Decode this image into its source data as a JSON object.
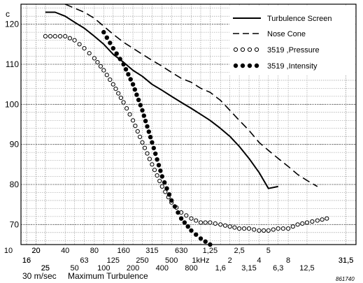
{
  "chart_data": {
    "type": "line",
    "corner_label": "c",
    "y_ticks": [
      70,
      80,
      90,
      100,
      110,
      120
    ],
    "ylim": [
      65,
      125
    ],
    "x_axis_scale": "log",
    "x_ticks_row1": [
      "20",
      "40",
      "80",
      "160",
      "315",
      "630",
      "1,25",
      "2,5",
      "5",
      "10",
      "20"
    ],
    "x_ticks_row2": [
      "16",
      "31,5",
      "63",
      "125",
      "250",
      "500",
      "1kHz",
      "2",
      "4",
      "8",
      "16",
      "31,5"
    ],
    "x_ticks_row3": [
      "25",
      "50",
      "100",
      "200",
      "400",
      "800",
      "1,6",
      "3,15",
      "6,3",
      "12,5",
      "25"
    ],
    "bottom_label_speed": "30 m/sec",
    "bottom_label_title": "Maximum Turbulence",
    "figure_number": "861740",
    "legend_position": "top-right",
    "series": [
      {
        "name": "Turbulence Screen",
        "style": "solid",
        "x": [
          25,
          31.5,
          40,
          50,
          63,
          80,
          100,
          125,
          160,
          200,
          250,
          315,
          400,
          500,
          630,
          800,
          1000,
          1250,
          1600,
          2000,
          2500,
          3150,
          4000,
          5000,
          6300
        ],
        "y": [
          123,
          123,
          122,
          120.5,
          119,
          117,
          115,
          112.5,
          110.5,
          108.5,
          107,
          105,
          103.5,
          102,
          100.5,
          99,
          97.5,
          96,
          94,
          92,
          89.5,
          86.5,
          83,
          79,
          79.5
        ]
      },
      {
        "name": "Nose Cone",
        "style": "dashed",
        "x": [
          40,
          50,
          63,
          80,
          100,
          125,
          160,
          200,
          250,
          315,
          400,
          500,
          630,
          800,
          1000,
          1250,
          1600,
          2000,
          2500,
          3150,
          4000,
          5000,
          6300,
          8000,
          10000,
          12500,
          16000
        ],
        "y": [
          125,
          124,
          123,
          121.5,
          119.5,
          117.5,
          115.5,
          114,
          112.5,
          111,
          109.5,
          108,
          106.5,
          105.5,
          104,
          103,
          101,
          98.5,
          96,
          93.5,
          90.5,
          88.5,
          86.5,
          84.5,
          82.5,
          81,
          79.5
        ]
      },
      {
        "name": "3519 ,Pressure",
        "style": "open-circles",
        "x": [
          25,
          31.5,
          40,
          50,
          63,
          80,
          100,
          125,
          160,
          200,
          250,
          315,
          400,
          500,
          630,
          800,
          1000,
          1250,
          1600,
          2000,
          2500,
          3150,
          4000,
          5000,
          6300,
          8000,
          10000,
          12500,
          16000,
          20000
        ],
        "y": [
          117,
          117,
          117,
          116,
          114,
          111.5,
          108.5,
          105,
          100.5,
          96,
          90.5,
          85,
          79.5,
          75.5,
          73,
          71.5,
          70.5,
          70.5,
          70,
          69.5,
          69,
          69,
          68.5,
          68.5,
          69,
          69,
          70,
          70.5,
          71,
          71.5
        ]
      },
      {
        "name": "3519 ,Intensity",
        "style": "filled-circles",
        "x": [
          100,
          125,
          160,
          200,
          250,
          315,
          400,
          500,
          630,
          800,
          1000,
          1250
        ],
        "y": [
          118,
          114,
          110,
          105,
          98.5,
          90.5,
          82,
          76,
          71.5,
          68.5,
          66.5,
          65
        ]
      }
    ]
  }
}
